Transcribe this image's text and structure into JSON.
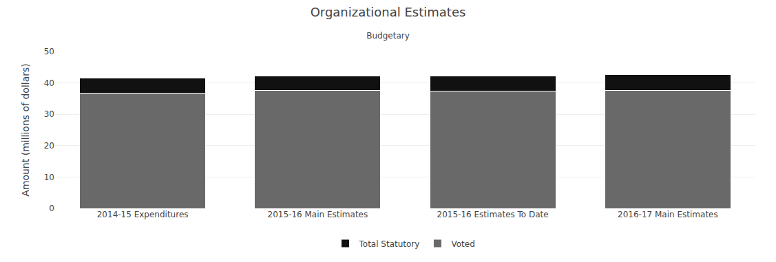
{
  "chart_data": {
    "type": "bar",
    "title": "Organizational Estimates",
    "subtitle": "Budgetary",
    "categories": [
      "2014-15 Expenditures",
      "2015-16 Main Estimates",
      "2015-16 Estimates To Date",
      "2016-17 Main Estimates"
    ],
    "series": [
      {
        "name": "Voted",
        "color": "#696969",
        "values": [
          36.8,
          37.6,
          37.5,
          37.6
        ]
      },
      {
        "name": "Total Statutory",
        "color": "#111111",
        "values": [
          4.7,
          4.6,
          4.7,
          5.0
        ]
      }
    ],
    "ylabel": "Amount (millions of dollars)",
    "ylim": [
      0,
      50
    ],
    "yticks": [
      0,
      10,
      20,
      30,
      40,
      50
    ],
    "grid": true,
    "stacked": true,
    "legend": "bottom"
  }
}
